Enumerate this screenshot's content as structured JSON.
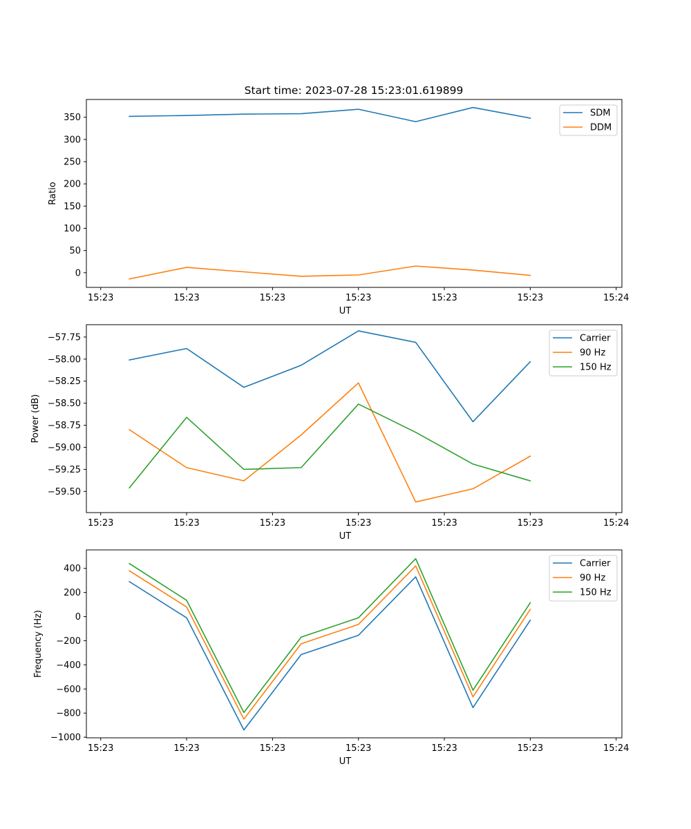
{
  "figure_title": "Start time: 2023-07-28 15:23:01.619899",
  "chart_data": [
    {
      "type": "line",
      "title": "Start time: 2023-07-28 15:23:01.619899",
      "xlabel": "UT",
      "ylabel": "Ratio",
      "x_range": [
        0,
        9.35
      ],
      "x": [
        0.75,
        1.75,
        2.75,
        3.75,
        4.75,
        5.75,
        6.75,
        7.75
      ],
      "x_ticks": [
        0.25,
        1.75,
        3.25,
        4.75,
        6.25,
        7.75,
        9.25
      ],
      "x_tick_labels": [
        "15:23",
        "15:23",
        "15:23",
        "15:23",
        "15:23",
        "15:23",
        "15:24"
      ],
      "ylim": [
        -33,
        390
      ],
      "y_ticks": [
        0,
        50,
        100,
        150,
        200,
        250,
        300,
        350
      ],
      "y_tick_labels": [
        "0",
        "50",
        "100",
        "150",
        "200",
        "250",
        "300",
        "350"
      ],
      "legend_position": "top-right",
      "series": [
        {
          "name": "SDM",
          "color": "#1f77b4",
          "values": [
            352,
            354,
            357,
            358,
            368,
            340,
            372,
            348
          ]
        },
        {
          "name": "DDM",
          "color": "#ff7f0e",
          "values": [
            -14,
            12,
            2,
            -8,
            -5,
            15,
            6,
            -6
          ]
        }
      ]
    },
    {
      "type": "line",
      "xlabel": "UT",
      "ylabel": "Power (dB)",
      "x_range": [
        0,
        9.35
      ],
      "x": [
        0.75,
        1.75,
        2.75,
        3.75,
        4.75,
        5.75,
        6.75,
        7.75
      ],
      "x_ticks": [
        0.25,
        1.75,
        3.25,
        4.75,
        6.25,
        7.75,
        9.25
      ],
      "x_tick_labels": [
        "15:23",
        "15:23",
        "15:23",
        "15:23",
        "15:23",
        "15:23",
        "15:24"
      ],
      "ylim": [
        -59.74,
        -57.61
      ],
      "y_ticks": [
        -59.5,
        -59.25,
        -59.0,
        -58.75,
        -58.5,
        -58.25,
        -58.0,
        -57.75
      ],
      "y_tick_labels": [
        "−59.50",
        "−59.25",
        "−59.00",
        "−58.75",
        "−58.50",
        "−58.25",
        "−58.00",
        "−57.75"
      ],
      "legend_position": "top-right",
      "series": [
        {
          "name": "Carrier",
          "color": "#1f77b4",
          "values": [
            -58.01,
            -57.88,
            -58.32,
            -58.07,
            -57.68,
            -57.81,
            -58.71,
            -58.03
          ]
        },
        {
          "name": "90 Hz",
          "color": "#ff7f0e",
          "values": [
            -58.8,
            -59.23,
            -59.38,
            -58.86,
            -58.27,
            -59.62,
            -59.47,
            -59.1
          ]
        },
        {
          "name": "150 Hz",
          "color": "#2ca02c",
          "values": [
            -59.46,
            -58.66,
            -59.25,
            -59.23,
            -58.51,
            -58.83,
            -59.19,
            -59.38
          ]
        }
      ]
    },
    {
      "type": "line",
      "xlabel": "UT",
      "ylabel": "Frequency (Hz)",
      "x_range": [
        0,
        9.35
      ],
      "x": [
        0.75,
        1.75,
        2.75,
        3.75,
        4.75,
        5.75,
        6.75,
        7.75
      ],
      "x_ticks": [
        0.25,
        1.75,
        3.25,
        4.75,
        6.25,
        7.75,
        9.25
      ],
      "x_tick_labels": [
        "15:23",
        "15:23",
        "15:23",
        "15:23",
        "15:23",
        "15:23",
        "15:24"
      ],
      "ylim": [
        -1005,
        553
      ],
      "y_ticks": [
        -1000,
        -800,
        -600,
        -400,
        -200,
        0,
        200,
        400
      ],
      "y_tick_labels": [
        "−1000",
        "−800",
        "−600",
        "−400",
        "−200",
        "0",
        "200",
        "400"
      ],
      "legend_position": "top-right",
      "series": [
        {
          "name": "Carrier",
          "color": "#1f77b4",
          "values": [
            290,
            -10,
            -940,
            -315,
            -155,
            330,
            -755,
            -30
          ]
        },
        {
          "name": "90 Hz",
          "color": "#ff7f0e",
          "values": [
            380,
            80,
            -850,
            -225,
            -65,
            420,
            -665,
            60
          ]
        },
        {
          "name": "150 Hz",
          "color": "#2ca02c",
          "values": [
            440,
            135,
            -795,
            -170,
            -10,
            480,
            -610,
            115
          ]
        }
      ]
    }
  ]
}
